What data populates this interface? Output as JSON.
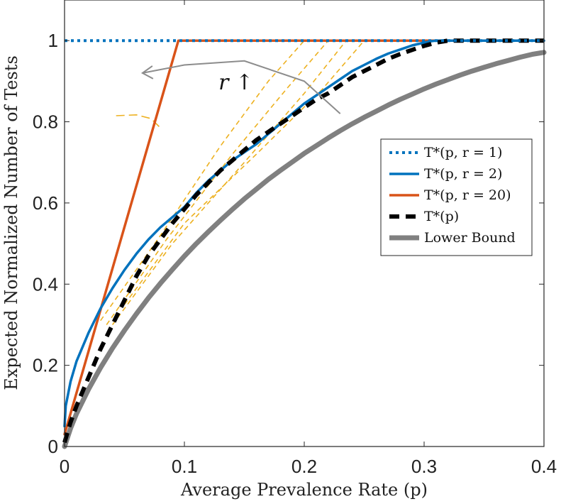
{
  "chart_data": {
    "type": "line",
    "title": "",
    "xlabel": "Average Prevalence Rate (p)",
    "ylabel": "Expected Normalized Number of Tests",
    "xlim": [
      0,
      0.4
    ],
    "ylim": [
      0,
      1.1
    ],
    "xticks": [
      0,
      0.1,
      0.2,
      0.3,
      0.4
    ],
    "xtick_labels": [
      "0",
      "0.1",
      "0.2",
      "0.3",
      "0.4"
    ],
    "yticks": [
      0,
      0.2,
      0.4,
      0.6,
      0.8,
      1
    ],
    "ytick_labels": [
      "0",
      "0.2",
      "0.4",
      "0.6",
      "0.8",
      "1"
    ],
    "grid": false,
    "legend_position": "right",
    "annotation": {
      "text": "r ↑",
      "x": 0.143,
      "y": 0.88
    },
    "arrow_path": [
      [
        0.23,
        0.82
      ],
      [
        0.2,
        0.9
      ],
      [
        0.15,
        0.95
      ],
      [
        0.1,
        0.94
      ],
      [
        0.065,
        0.92
      ]
    ],
    "series": [
      {
        "name": "T*(p, r = 1)",
        "legend_label": "T*(p, r = 1)",
        "style": "dotted",
        "color": "#0072BD",
        "x": [
          0,
          0.4
        ],
        "y": [
          1,
          1
        ]
      },
      {
        "name": "T*(p, r = 2)",
        "legend_label": "T*(p, r = 2)",
        "style": "solid",
        "color": "#0072BD",
        "x": [
          0.0,
          0.001,
          0.005,
          0.01,
          0.02,
          0.03,
          0.04,
          0.05,
          0.06,
          0.07,
          0.08,
          0.09,
          0.1,
          0.11,
          0.12,
          0.13,
          0.14,
          0.15,
          0.16,
          0.17,
          0.18,
          0.19,
          0.2,
          0.21,
          0.22,
          0.23,
          0.24,
          0.25,
          0.26,
          0.27,
          0.28,
          0.29,
          0.3,
          0.305,
          0.31,
          0.4
        ],
        "y": [
          0.05,
          0.1,
          0.16,
          0.21,
          0.28,
          0.34,
          0.39,
          0.435,
          0.475,
          0.51,
          0.54,
          0.565,
          0.59,
          0.625,
          0.655,
          0.68,
          0.705,
          0.725,
          0.745,
          0.77,
          0.795,
          0.82,
          0.845,
          0.865,
          0.885,
          0.905,
          0.925,
          0.94,
          0.955,
          0.968,
          0.978,
          0.988,
          0.995,
          0.998,
          1.0,
          1.0
        ]
      },
      {
        "name": "T*(p, r = 20)",
        "legend_label": "T*(p, r = 20)",
        "style": "solid",
        "color": "#D95319",
        "x": [
          0,
          0.095,
          0.4
        ],
        "y": [
          0.03,
          1,
          1
        ]
      },
      {
        "name": "T*(p)",
        "legend_label": "T*(p)",
        "style": "dashed",
        "color": "#000000",
        "x": [
          0.0,
          0.005,
          0.01,
          0.02,
          0.03,
          0.04,
          0.05,
          0.06,
          0.07,
          0.08,
          0.09,
          0.1,
          0.11,
          0.12,
          0.13,
          0.14,
          0.15,
          0.16,
          0.17,
          0.18,
          0.19,
          0.2,
          0.21,
          0.22,
          0.23,
          0.24,
          0.25,
          0.26,
          0.27,
          0.28,
          0.29,
          0.3,
          0.31,
          0.32,
          0.33,
          0.34,
          0.35,
          0.36,
          0.4
        ],
        "y": [
          0.01,
          0.06,
          0.1,
          0.17,
          0.24,
          0.3,
          0.36,
          0.42,
          0.47,
          0.51,
          0.55,
          0.585,
          0.62,
          0.65,
          0.68,
          0.705,
          0.73,
          0.755,
          0.775,
          0.795,
          0.815,
          0.835,
          0.855,
          0.87,
          0.89,
          0.91,
          0.925,
          0.94,
          0.955,
          0.967,
          0.977,
          0.987,
          0.995,
          1.0,
          1.0,
          1.0,
          1.0,
          1.0,
          1.0
        ]
      },
      {
        "name": "Lower Bound",
        "legend_label": "Lower Bound",
        "style": "solid",
        "color": "#808080",
        "x": [
          0.0,
          0.005,
          0.01,
          0.02,
          0.03,
          0.04,
          0.05,
          0.06,
          0.07,
          0.08,
          0.09,
          0.1,
          0.11,
          0.12,
          0.13,
          0.14,
          0.15,
          0.16,
          0.17,
          0.18,
          0.19,
          0.2,
          0.21,
          0.22,
          0.23,
          0.24,
          0.25,
          0.26,
          0.27,
          0.28,
          0.29,
          0.3,
          0.31,
          0.32,
          0.33,
          0.34,
          0.35,
          0.36,
          0.37,
          0.38,
          0.39,
          0.4
        ],
        "y": [
          0.0,
          0.045,
          0.081,
          0.141,
          0.194,
          0.242,
          0.286,
          0.327,
          0.366,
          0.402,
          0.436,
          0.469,
          0.5,
          0.529,
          0.557,
          0.584,
          0.61,
          0.634,
          0.658,
          0.68,
          0.701,
          0.722,
          0.741,
          0.76,
          0.778,
          0.795,
          0.811,
          0.826,
          0.841,
          0.855,
          0.868,
          0.881,
          0.893,
          0.904,
          0.915,
          0.925,
          0.934,
          0.943,
          0.951,
          0.959,
          0.966,
          0.971
        ]
      }
    ],
    "auxiliary_curves": {
      "color": "#EDB120",
      "style": "dashed",
      "curves": [
        {
          "x": [
            0.03,
            0.08,
            0.13,
            0.17,
            0.2
          ],
          "y": [
            0.31,
            0.52,
            0.74,
            0.9,
            1.0
          ]
        },
        {
          "x": [
            0.035,
            0.085,
            0.14,
            0.185,
            0.22
          ],
          "y": [
            0.3,
            0.51,
            0.72,
            0.88,
            1.0
          ]
        },
        {
          "x": [
            0.04,
            0.09,
            0.15,
            0.2,
            0.235
          ],
          "y": [
            0.3,
            0.5,
            0.7,
            0.87,
            1.0
          ]
        },
        {
          "x": [
            0.05,
            0.1,
            0.16,
            0.215,
            0.25
          ],
          "y": [
            0.35,
            0.55,
            0.72,
            0.88,
            1.0
          ]
        }
      ],
      "marker_arc": {
        "x": [
          0.043,
          0.06,
          0.072,
          0.08
        ],
        "y": [
          0.815,
          0.817,
          0.808,
          0.785
        ]
      }
    }
  }
}
